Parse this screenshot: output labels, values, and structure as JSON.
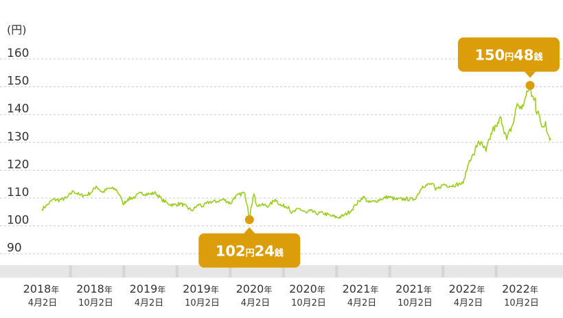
{
  "chart_data": {
    "type": "line",
    "ylabel": "(円)",
    "ylim": [
      85,
      166
    ],
    "yticks": [
      90,
      100,
      110,
      120,
      130,
      140,
      150,
      160
    ],
    "grid": true,
    "line_color": "#9acd1e",
    "accent_color": "#dc9d0a",
    "axis_color": "#e6e6e6",
    "xtick_labels": [
      {
        "year": "2018",
        "suffix": "年",
        "date": "4月2日"
      },
      {
        "year": "2018",
        "suffix": "年",
        "date": "10月2日"
      },
      {
        "year": "2019",
        "suffix": "年",
        "date": "4月2日"
      },
      {
        "year": "2019",
        "suffix": "年",
        "date": "10月2日"
      },
      {
        "year": "2020",
        "suffix": "年",
        "date": "4月2日"
      },
      {
        "year": "2020",
        "suffix": "年",
        "date": "10月2日"
      },
      {
        "year": "2021",
        "suffix": "年",
        "date": "4月2日"
      },
      {
        "year": "2021",
        "suffix": "年",
        "date": "10月2日"
      },
      {
        "year": "2022",
        "suffix": "年",
        "date": "4月2日"
      },
      {
        "year": "2022",
        "suffix": "年",
        "date": "10月2日"
      }
    ],
    "series": [
      {
        "points": [
          [
            "2018-04-02",
            106.0
          ],
          [
            "2018-04-20",
            107.5
          ],
          [
            "2018-05-10",
            109.5
          ],
          [
            "2018-06-01",
            109.3
          ],
          [
            "2018-06-25",
            110.0
          ],
          [
            "2018-07-18",
            112.5
          ],
          [
            "2018-08-10",
            111.0
          ],
          [
            "2018-08-31",
            111.0
          ],
          [
            "2018-09-20",
            112.3
          ],
          [
            "2018-10-04",
            114.3
          ],
          [
            "2018-10-25",
            112.0
          ],
          [
            "2018-11-15",
            113.5
          ],
          [
            "2018-12-10",
            113.2
          ],
          [
            "2018-12-25",
            110.8
          ],
          [
            "2019-01-03",
            107.8
          ],
          [
            "2019-01-20",
            109.6
          ],
          [
            "2019-02-15",
            110.5
          ],
          [
            "2019-03-05",
            111.8
          ],
          [
            "2019-04-02",
            111.4
          ],
          [
            "2019-04-25",
            111.8
          ],
          [
            "2019-05-15",
            109.5
          ],
          [
            "2019-06-05",
            108.0
          ],
          [
            "2019-06-25",
            107.5
          ],
          [
            "2019-07-20",
            108.0
          ],
          [
            "2019-08-26",
            105.5
          ],
          [
            "2019-09-20",
            107.8
          ],
          [
            "2019-10-02",
            107.0
          ],
          [
            "2019-10-25",
            108.6
          ],
          [
            "2019-11-20",
            108.8
          ],
          [
            "2019-12-13",
            109.5
          ],
          [
            "2020-01-06",
            108.0
          ],
          [
            "2020-01-17",
            110.2
          ],
          [
            "2020-02-20",
            112.0
          ],
          [
            "2020-03-03",
            107.0
          ],
          [
            "2020-03-09",
            102.24
          ],
          [
            "2020-03-14",
            106.5
          ],
          [
            "2020-03-24",
            111.5
          ],
          [
            "2020-04-02",
            107.5
          ],
          [
            "2020-04-20",
            107.5
          ],
          [
            "2020-05-15",
            107.2
          ],
          [
            "2020-06-05",
            109.6
          ],
          [
            "2020-06-25",
            107.2
          ],
          [
            "2020-07-20",
            107.0
          ],
          [
            "2020-07-31",
            104.5
          ],
          [
            "2020-08-25",
            106.2
          ],
          [
            "2020-09-20",
            104.6
          ],
          [
            "2020-10-02",
            105.5
          ],
          [
            "2020-10-21",
            104.5
          ],
          [
            "2020-11-15",
            104.6
          ],
          [
            "2020-12-15",
            103.5
          ],
          [
            "2021-01-06",
            103.0
          ],
          [
            "2021-01-25",
            103.8
          ],
          [
            "2021-02-15",
            105.2
          ],
          [
            "2021-03-05",
            107.5
          ],
          [
            "2021-03-31",
            110.5
          ],
          [
            "2021-04-20",
            108.4
          ],
          [
            "2021-05-10",
            108.8
          ],
          [
            "2021-05-31",
            109.6
          ],
          [
            "2021-06-25",
            110.5
          ],
          [
            "2021-07-20",
            109.5
          ],
          [
            "2021-08-20",
            109.7
          ],
          [
            "2021-09-20",
            109.5
          ],
          [
            "2021-10-02",
            111.0
          ],
          [
            "2021-10-20",
            114.3
          ],
          [
            "2021-11-24",
            115.2
          ],
          [
            "2021-12-03",
            112.8
          ],
          [
            "2021-12-31",
            115.0
          ],
          [
            "2022-01-20",
            114.3
          ],
          [
            "2022-02-20",
            115.0
          ],
          [
            "2022-03-07",
            115.3
          ],
          [
            "2022-03-28",
            123.5
          ],
          [
            "2022-04-12",
            125.5
          ],
          [
            "2022-04-28",
            130.5
          ],
          [
            "2022-05-24",
            126.8
          ],
          [
            "2022-06-15",
            134.5
          ],
          [
            "2022-06-30",
            135.7
          ],
          [
            "2022-07-14",
            139.0
          ],
          [
            "2022-08-02",
            131.0
          ],
          [
            "2022-08-25",
            137.0
          ],
          [
            "2022-09-07",
            144.0
          ],
          [
            "2022-09-22",
            142.0
          ],
          [
            "2022-10-02",
            145.0
          ],
          [
            "2022-10-21",
            150.48
          ],
          [
            "2022-10-26",
            146.5
          ],
          [
            "2022-11-08",
            146.0
          ],
          [
            "2022-11-10",
            141.0
          ],
          [
            "2022-11-20",
            140.0
          ],
          [
            "2022-12-01",
            135.5
          ],
          [
            "2022-12-13",
            137.5
          ],
          [
            "2022-12-20",
            133.0
          ],
          [
            "2022-12-30",
            131.5
          ]
        ]
      }
    ],
    "annotations": [
      {
        "date": "2020-03-09",
        "value": 102.24,
        "label_major": "102",
        "unit_major": "円",
        "label_minor": "24",
        "unit_minor": "銭",
        "position": "below"
      },
      {
        "date": "2022-10-21",
        "value": 150.48,
        "label_major": "150",
        "unit_major": "円",
        "label_minor": "48",
        "unit_minor": "銭",
        "position": "above"
      }
    ]
  }
}
